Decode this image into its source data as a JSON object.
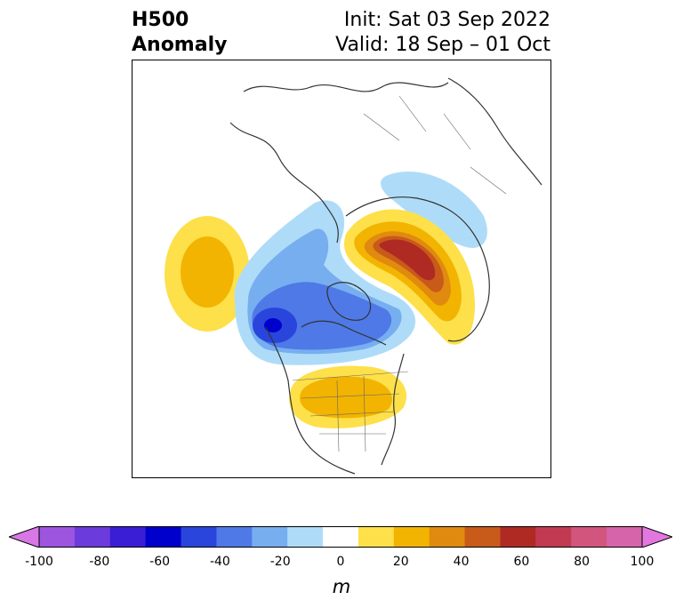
{
  "title": {
    "left_line1": "H500",
    "left_line2": "Anomaly",
    "right_line1": "Init: Sat 03 Sep 2022",
    "right_line2": "Valid: 18 Sep – 01 Oct"
  },
  "colorbar": {
    "unit": "m",
    "tick_labels": [
      "-100",
      "-80",
      "-60",
      "-40",
      "-20",
      "0",
      "20",
      "40",
      "60",
      "80",
      "100"
    ],
    "colors": [
      "#d977e6",
      "#9d55e0",
      "#6b3bdb",
      "#3a1ed6",
      "#0000cc",
      "#2a45dc",
      "#4f79e6",
      "#77aef0",
      "#aedcf8",
      "#ffffff",
      "#fde04a",
      "#f2b400",
      "#e08a10",
      "#c85a1a",
      "#b02a24",
      "#c23a52",
      "#d2557e",
      "#d664aa",
      "#e377e0"
    ],
    "extend": "both"
  },
  "map": {
    "projection": "north-polar-stereographic",
    "anomaly_regions": [
      {
        "name": "north-pacific-ridge",
        "sign": "positive",
        "peak_m": 30
      },
      {
        "name": "alaska-trough",
        "sign": "negative",
        "peak_m": -50
      },
      {
        "name": "canada-trough",
        "sign": "negative",
        "peak_m": -40
      },
      {
        "name": "great-lakes-ridge",
        "sign": "positive",
        "peak_m": 30
      },
      {
        "name": "north-atlantic-ridge",
        "sign": "positive",
        "peak_m": 70
      },
      {
        "name": "eurasia-arctic-trough",
        "sign": "negative",
        "peak_m": -20
      }
    ]
  }
}
